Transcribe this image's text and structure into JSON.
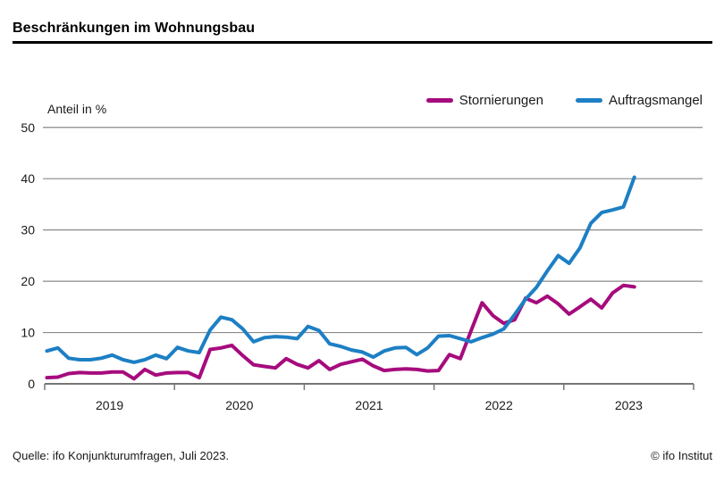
{
  "header": {
    "title": "Beschränkungen im Wohnungsbau"
  },
  "footer": {
    "source": "Quelle: ifo Konjunkturumfragen, Juli 2023.",
    "copyright": "© ifo Institut"
  },
  "chart_data": {
    "type": "line",
    "title": "Beschränkungen im Wohnungsbau",
    "ylabel": "Anteil in %",
    "xlabel": "",
    "ylim": [
      0,
      50
    ],
    "yticks": [
      0,
      10,
      20,
      30,
      40,
      50
    ],
    "grid": "horizontal",
    "legend_position": "top-right",
    "x_start": "2019-01",
    "x_end": "2023-07",
    "x_frequency": "monthly",
    "xtick_year_labels": [
      "2019",
      "2020",
      "2021",
      "2022",
      "2023"
    ],
    "colors": {
      "stornierungen": "#a60b7d",
      "auftragsmangel": "#1d7fc4",
      "grid": "#8a8a8a",
      "axis": "#767676"
    },
    "series": [
      {
        "name": "Stornierungen",
        "color": "#a60b7d",
        "values": [
          1.2,
          1.3,
          2.0,
          2.2,
          2.1,
          2.1,
          2.3,
          2.3,
          1.0,
          2.8,
          1.7,
          2.1,
          2.2,
          2.2,
          1.2,
          6.7,
          7.0,
          7.5,
          5.5,
          3.7,
          3.4,
          3.1,
          4.9,
          3.8,
          3.1,
          4.5,
          2.8,
          3.8,
          4.3,
          4.8,
          3.5,
          2.6,
          2.8,
          2.9,
          2.8,
          2.5,
          2.6,
          5.7,
          4.9,
          10.4,
          15.8,
          13.3,
          11.8,
          12.5,
          16.7,
          15.8,
          17.1,
          15.6,
          13.6,
          15.0,
          16.5,
          14.8,
          17.7,
          19.2,
          18.9
        ]
      },
      {
        "name": "Auftragsmangel",
        "color": "#1d7fc4",
        "values": [
          6.4,
          7.0,
          5.0,
          4.7,
          4.7,
          5.0,
          5.6,
          4.7,
          4.2,
          4.7,
          5.6,
          4.9,
          7.1,
          6.4,
          6.1,
          10.5,
          13.0,
          12.5,
          10.7,
          8.2,
          9.0,
          9.2,
          9.1,
          8.8,
          11.2,
          10.4,
          7.8,
          7.3,
          6.6,
          6.2,
          5.2,
          6.4,
          7.0,
          7.1,
          5.7,
          7.0,
          9.3,
          9.4,
          8.8,
          8.2,
          9.0,
          9.7,
          10.7,
          13.5,
          16.5,
          18.8,
          22.0,
          25.0,
          23.5,
          26.5,
          31.3,
          33.4,
          33.9,
          34.5,
          40.3
        ]
      }
    ]
  }
}
